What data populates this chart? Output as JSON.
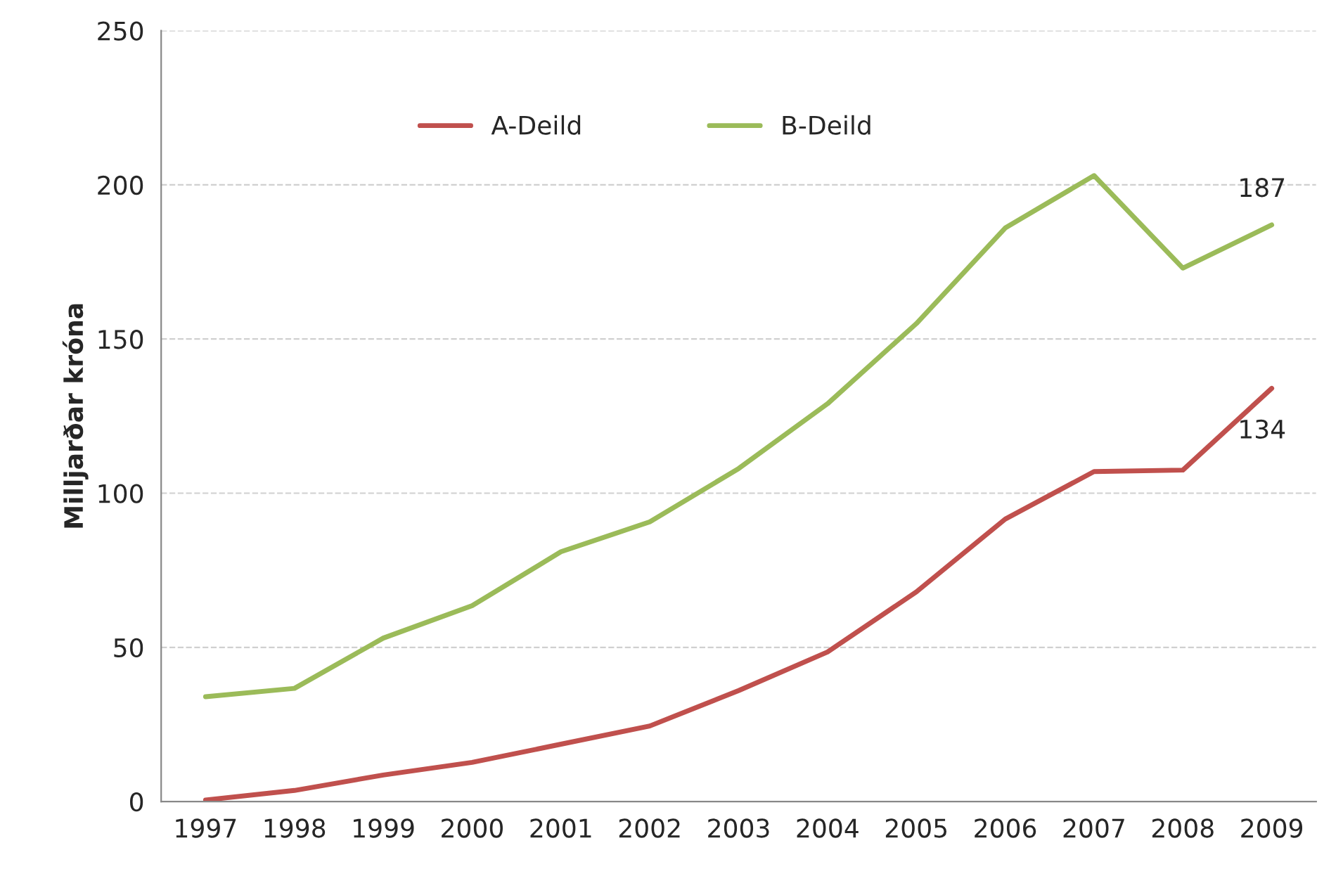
{
  "chart_data": {
    "type": "line",
    "ylabel": "Milljarðar króna",
    "categories": [
      "1997",
      "1998",
      "1999",
      "2000",
      "2001",
      "2002",
      "2003",
      "2004",
      "2005",
      "2006",
      "2007",
      "2008",
      "2009"
    ],
    "series": [
      {
        "name": "A-Deild",
        "color": "#c0504d",
        "values": [
          0.5,
          3.6,
          8.6,
          12.7,
          18.6,
          24.5,
          36,
          48.5,
          68,
          91.6,
          107,
          107.5,
          134
        ],
        "value_labels": [
          null,
          null,
          null,
          null,
          null,
          null,
          null,
          null,
          null,
          null,
          null,
          null,
          "134"
        ]
      },
      {
        "name": "B-Deild",
        "color": "#9bbb59",
        "values": [
          34,
          36.7,
          53,
          63.5,
          81,
          90.7,
          108,
          129,
          155,
          186,
          203,
          173,
          187
        ],
        "value_labels": [
          null,
          null,
          null,
          null,
          null,
          null,
          null,
          null,
          null,
          null,
          null,
          null,
          "187"
        ]
      }
    ],
    "ylim": [
      0,
      250
    ],
    "yticks": [
      0,
      50,
      100,
      150,
      200,
      250
    ],
    "grid": "y",
    "legend": "top",
    "marker": "none",
    "line_style": "solid"
  }
}
